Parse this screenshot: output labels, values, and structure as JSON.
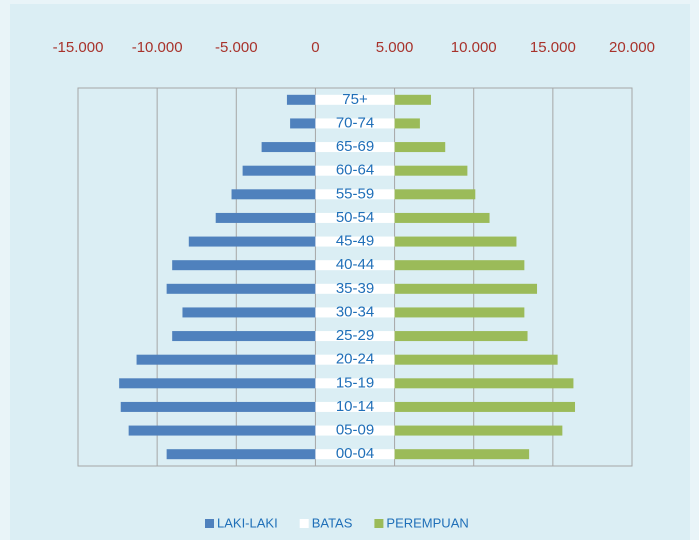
{
  "chart_data": {
    "type": "bar",
    "orientation": "horizontal",
    "stacked": true,
    "categories": [
      "75+",
      "70-74",
      "65-69",
      "60-64",
      "55-59",
      "50-54",
      "45-49",
      "40-44",
      "35-39",
      "30-34",
      "25-29",
      "20-24",
      "15-19",
      "10-14",
      "05-09",
      "00-04"
    ],
    "series": [
      {
        "name": "LAKI-LAKI",
        "color": "#4f81bd",
        "values": [
          -1800,
          -1600,
          -3400,
          -4600,
          -5300,
          -6300,
          -8000,
          -9050,
          -9400,
          -8400,
          -9050,
          -11300,
          -12400,
          -12300,
          -11800,
          -9400
        ]
      },
      {
        "name": "BATAS",
        "color": "#ffffff",
        "values": [
          5000,
          5000,
          5000,
          5000,
          5000,
          5000,
          5000,
          5000,
          5000,
          5000,
          5000,
          5000,
          5000,
          5000,
          5000,
          5000
        ]
      },
      {
        "name": "PEREMPUAN",
        "color": "#9bbb59",
        "values": [
          2300,
          1600,
          3200,
          4600,
          5100,
          6000,
          7700,
          8200,
          9000,
          8200,
          8400,
          10300,
          11300,
          11400,
          10600,
          8500
        ]
      }
    ],
    "xlim": [
      -15000,
      20000
    ],
    "xticks": [
      {
        "value": -15000,
        "label": "-15.000"
      },
      {
        "value": -10000,
        "label": "-10.000"
      },
      {
        "value": -5000,
        "label": "-5.000"
      },
      0,
      {
        "value": 5000,
        "label": "5.000"
      },
      {
        "value": 10000,
        "label": "10.000"
      },
      {
        "value": 15000,
        "label": "15.000"
      },
      {
        "value": 20000,
        "label": "20.000"
      }
    ],
    "grid": true,
    "legend": "bottom"
  }
}
